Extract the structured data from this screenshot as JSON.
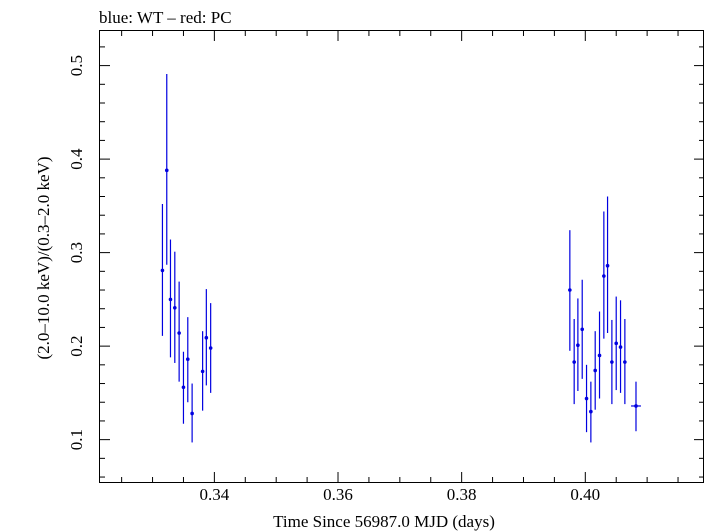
{
  "chart_data": {
    "type": "scatter",
    "title": "blue: WT – red: PC",
    "xlabel": "Time Since 56987.0 MJD (days)",
    "ylabel": "(2.0–10.0 keV)/(0.3–2.0 keV)",
    "xlim": [
      0.3215,
      0.4192
    ],
    "ylim": [
      0.0547,
      0.537
    ],
    "x_ticks": [
      {
        "value": 0.34,
        "label": "0.34"
      },
      {
        "value": 0.36,
        "label": "0.36"
      },
      {
        "value": 0.38,
        "label": "0.38"
      },
      {
        "value": 0.4,
        "label": "0.40"
      }
    ],
    "y_ticks": [
      {
        "value": 0.1,
        "label": "0.1"
      },
      {
        "value": 0.2,
        "label": "0.2"
      },
      {
        "value": 0.3,
        "label": "0.3"
      },
      {
        "value": 0.4,
        "label": "0.4"
      },
      {
        "value": 0.5,
        "label": "0.5"
      }
    ],
    "grid": false,
    "series": [
      {
        "color": "#0000e0",
        "points": [
          {
            "x": 0.3316,
            "y": 0.281,
            "ylo": 0.211,
            "yhi": 0.352,
            "xerr": 0.0002
          },
          {
            "x": 0.3323,
            "y": 0.388,
            "ylo": 0.287,
            "yhi": 0.491,
            "xerr": 0.0002
          },
          {
            "x": 0.3329,
            "y": 0.25,
            "ylo": 0.188,
            "yhi": 0.314,
            "xerr": 0.0002
          },
          {
            "x": 0.3336,
            "y": 0.241,
            "ylo": 0.182,
            "yhi": 0.301,
            "xerr": 0.0002
          },
          {
            "x": 0.3343,
            "y": 0.214,
            "ylo": 0.162,
            "yhi": 0.269,
            "xerr": 0.0002
          },
          {
            "x": 0.335,
            "y": 0.156,
            "ylo": 0.117,
            "yhi": 0.194,
            "xerr": 0.0002
          },
          {
            "x": 0.3357,
            "y": 0.186,
            "ylo": 0.14,
            "yhi": 0.231,
            "xerr": 0.0002
          },
          {
            "x": 0.3364,
            "y": 0.128,
            "ylo": 0.097,
            "yhi": 0.16,
            "xerr": 0.0002
          },
          {
            "x": 0.3381,
            "y": 0.173,
            "ylo": 0.131,
            "yhi": 0.216,
            "xerr": 0.0002
          },
          {
            "x": 0.3387,
            "y": 0.209,
            "ylo": 0.158,
            "yhi": 0.261,
            "xerr": 0.0002
          },
          {
            "x": 0.3394,
            "y": 0.198,
            "ylo": 0.15,
            "yhi": 0.246,
            "xerr": 0.0002
          },
          {
            "x": 0.3975,
            "y": 0.26,
            "ylo": 0.195,
            "yhi": 0.324,
            "xerr": 0.0002
          },
          {
            "x": 0.3982,
            "y": 0.183,
            "ylo": 0.138,
            "yhi": 0.229,
            "xerr": 0.0002
          },
          {
            "x": 0.3988,
            "y": 0.201,
            "ylo": 0.152,
            "yhi": 0.251,
            "xerr": 0.0002
          },
          {
            "x": 0.3995,
            "y": 0.218,
            "ylo": 0.165,
            "yhi": 0.271,
            "xerr": 0.0002
          },
          {
            "x": 0.4002,
            "y": 0.144,
            "ylo": 0.108,
            "yhi": 0.18,
            "xerr": 0.0002
          },
          {
            "x": 0.4009,
            "y": 0.13,
            "ylo": 0.097,
            "yhi": 0.162,
            "xerr": 0.0002
          },
          {
            "x": 0.4016,
            "y": 0.174,
            "ylo": 0.132,
            "yhi": 0.216,
            "xerr": 0.0002
          },
          {
            "x": 0.4023,
            "y": 0.19,
            "ylo": 0.144,
            "yhi": 0.237,
            "xerr": 0.0002
          },
          {
            "x": 0.403,
            "y": 0.275,
            "ylo": 0.208,
            "yhi": 0.344,
            "xerr": 0.0002
          },
          {
            "x": 0.4036,
            "y": 0.286,
            "ylo": 0.214,
            "yhi": 0.36,
            "xerr": 0.0002
          },
          {
            "x": 0.4043,
            "y": 0.183,
            "ylo": 0.138,
            "yhi": 0.228,
            "xerr": 0.0002
          },
          {
            "x": 0.405,
            "y": 0.203,
            "ylo": 0.153,
            "yhi": 0.253,
            "xerr": 0.0002
          },
          {
            "x": 0.4057,
            "y": 0.199,
            "ylo": 0.15,
            "yhi": 0.249,
            "xerr": 0.0002
          },
          {
            "x": 0.4064,
            "y": 0.183,
            "ylo": 0.138,
            "yhi": 0.229,
            "xerr": 0.0002
          },
          {
            "x": 0.4082,
            "y": 0.136,
            "ylo": 0.109,
            "yhi": 0.162,
            "xerr": 0.0008
          }
        ]
      }
    ]
  }
}
